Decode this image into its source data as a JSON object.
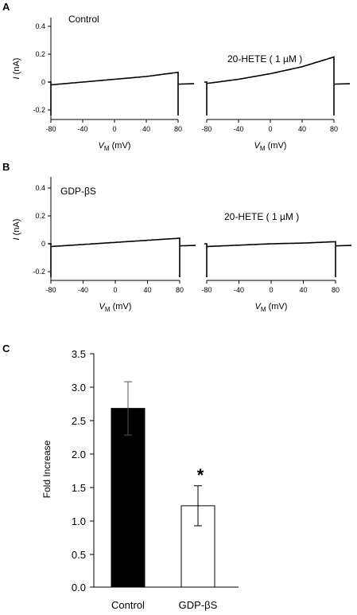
{
  "panels": {
    "A": {
      "letter": "A",
      "ylabel_italic": "I",
      "ylabel_rest": " (nA)",
      "xlabel_italic": "V",
      "xlabel_sub": "M",
      "xlabel_rest": " (mV)",
      "y_ticks": [
        "0.4",
        "0.2",
        "0",
        "-0.2"
      ],
      "x_ticks": [
        "-80",
        "-40",
        "0",
        "40",
        "80"
      ],
      "traces": [
        {
          "label": "Control",
          "v": [
            -80,
            -40,
            0,
            40,
            80
          ],
          "i": [
            -0.02,
            0.0,
            0.02,
            0.04,
            0.07
          ]
        },
        {
          "label": "20-HETE ( 1 µM )",
          "v": [
            -80,
            -40,
            0,
            40,
            80
          ],
          "i": [
            -0.01,
            0.02,
            0.06,
            0.11,
            0.18
          ]
        }
      ]
    },
    "B": {
      "letter": "B",
      "ylabel_italic": "I",
      "ylabel_rest": " (nA)",
      "xlabel_italic": "V",
      "xlabel_sub": "M",
      "xlabel_rest": " (mV)",
      "y_ticks": [
        "0.4",
        "0.2",
        "0",
        "-0.2"
      ],
      "x_ticks": [
        "-80",
        "-40",
        "0",
        "40",
        "80"
      ],
      "traces": [
        {
          "label": "GDP-βS",
          "v": [
            -80,
            -40,
            0,
            40,
            80
          ],
          "i": [
            -0.02,
            -0.005,
            0.01,
            0.025,
            0.04
          ]
        },
        {
          "label": "20-HETE ( 1 µM )",
          "v": [
            -80,
            -40,
            0,
            40,
            80
          ],
          "i": [
            -0.02,
            -0.01,
            0.0,
            0.005,
            0.015
          ]
        }
      ]
    }
  },
  "chart_data": [
    {
      "type": "line",
      "panel": "A",
      "xlabel": "VM (mV)",
      "ylabel": "I (nA)",
      "xlim": [
        -80,
        80
      ],
      "ylim": [
        -0.25,
        0.45
      ],
      "series": [
        {
          "name": "Control",
          "x": [
            -80,
            -40,
            0,
            40,
            80
          ],
          "y": [
            -0.02,
            0.0,
            0.02,
            0.04,
            0.07
          ]
        },
        {
          "name": "20-HETE ( 1 µM )",
          "x": [
            -80,
            -40,
            0,
            40,
            80
          ],
          "y": [
            -0.01,
            0.02,
            0.06,
            0.11,
            0.18
          ]
        }
      ]
    },
    {
      "type": "line",
      "panel": "B",
      "xlabel": "VM (mV)",
      "ylabel": "I (nA)",
      "xlim": [
        -80,
        80
      ],
      "ylim": [
        -0.25,
        0.45
      ],
      "series": [
        {
          "name": "GDP-βS",
          "x": [
            -80,
            -40,
            0,
            40,
            80
          ],
          "y": [
            -0.02,
            -0.005,
            0.01,
            0.025,
            0.04
          ]
        },
        {
          "name": "20-HETE ( 1 µM )",
          "x": [
            -80,
            -40,
            0,
            40,
            80
          ],
          "y": [
            -0.02,
            -0.01,
            0.0,
            0.005,
            0.015
          ]
        }
      ]
    },
    {
      "type": "bar",
      "panel": "C",
      "letter": "C",
      "categories": [
        "Control",
        "GDP-βS"
      ],
      "values": [
        2.68,
        1.22
      ],
      "errors": [
        0.4,
        0.3
      ],
      "bar_colors": [
        "#000000",
        "#ffffff"
      ],
      "ylabel": "Fold Increase",
      "ylim": [
        0,
        3.5
      ],
      "y_ticks": [
        "3.5",
        "3.0",
        "2.5",
        "2.0",
        "1.5",
        "1.0",
        "0.5",
        "0.0"
      ],
      "significance": "*"
    }
  ]
}
